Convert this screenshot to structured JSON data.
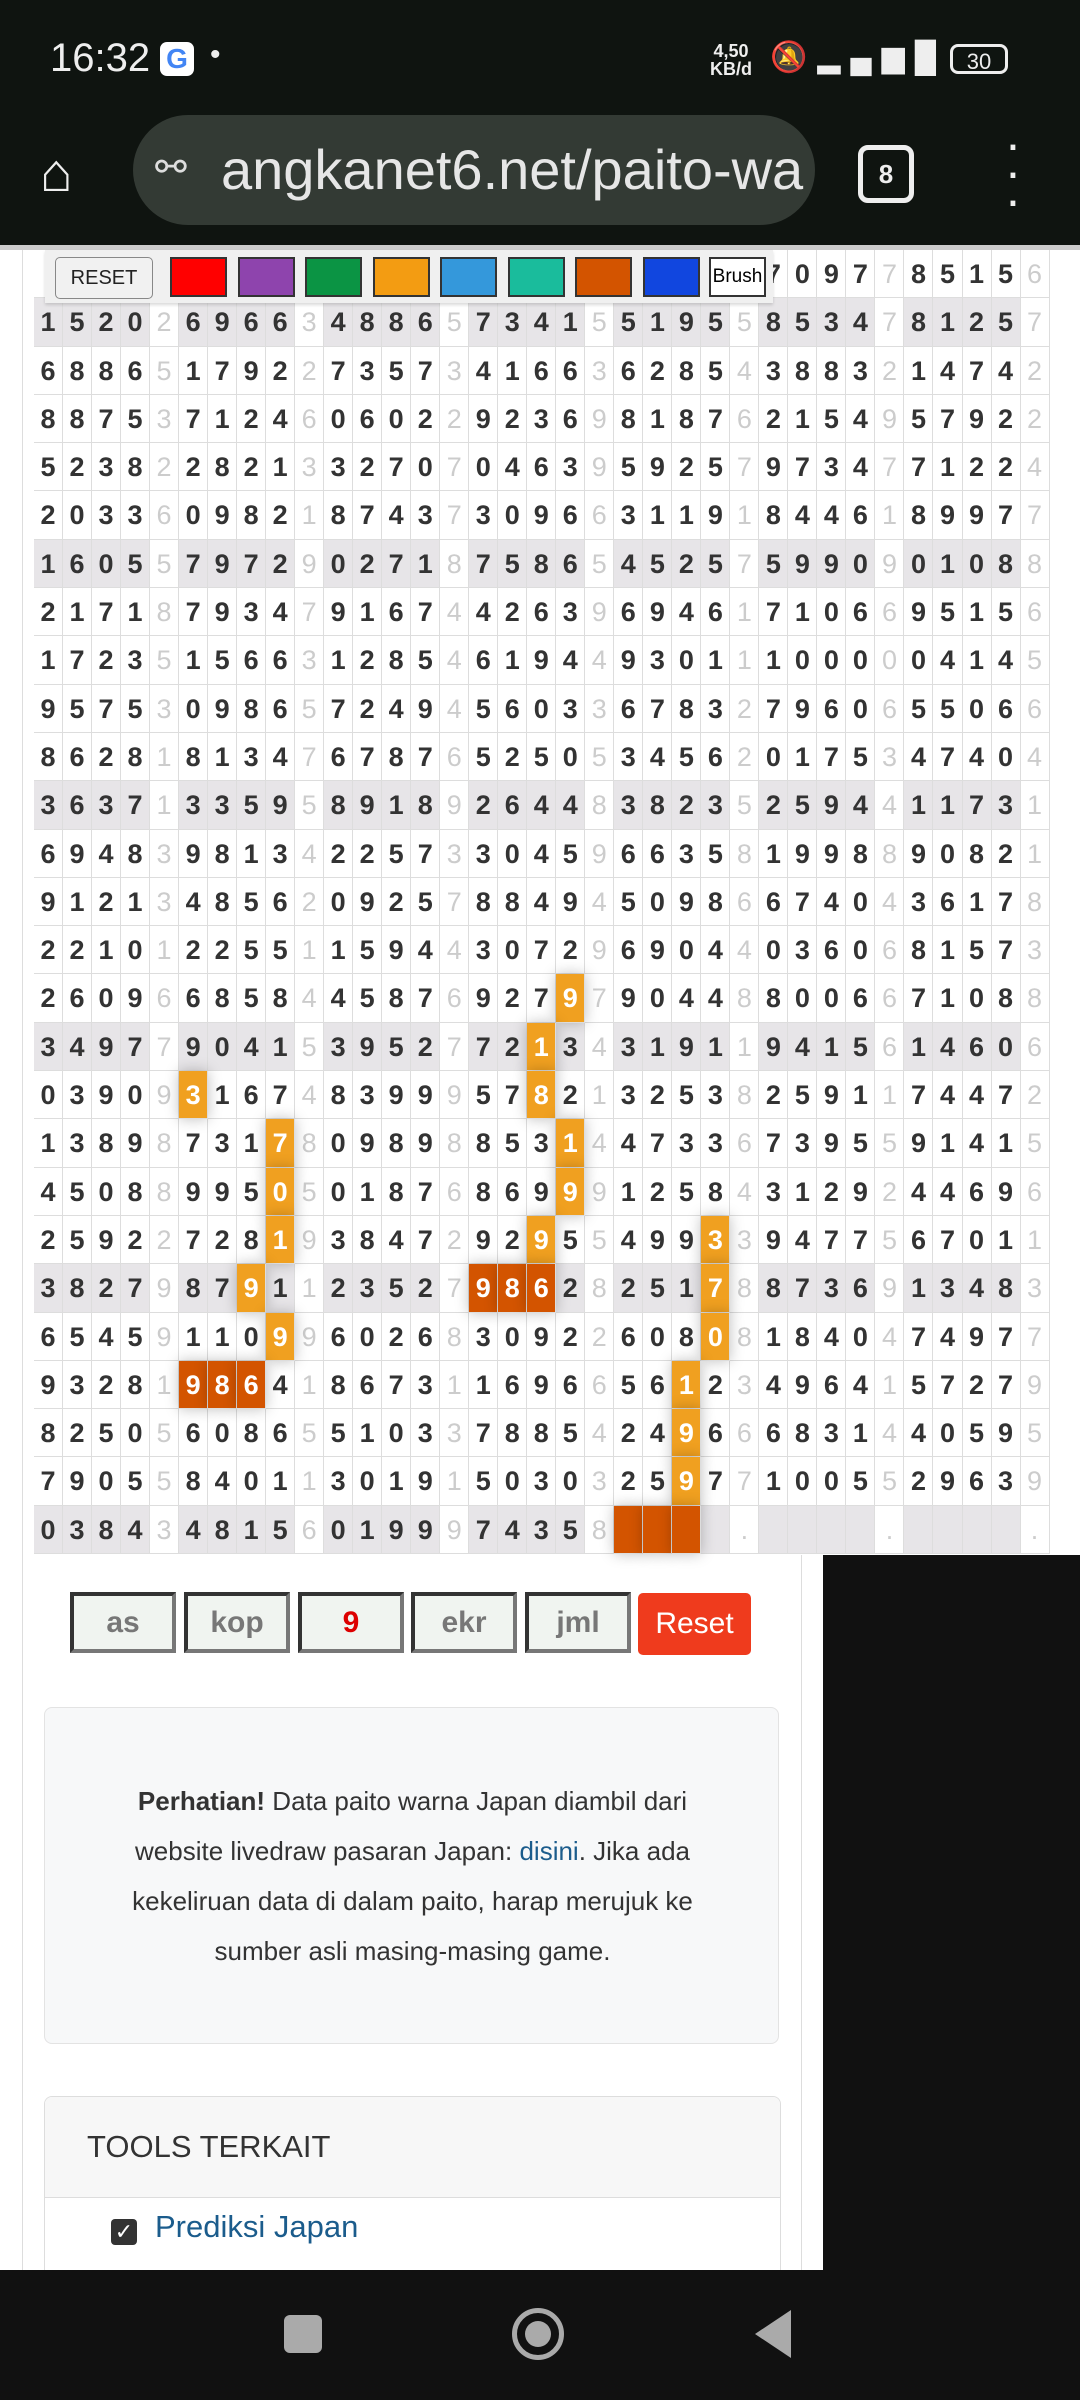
{
  "status_bar": {
    "time": "16:32",
    "app_icon": "google-g-icon",
    "net_speed": "4,50",
    "net_unit": "KB/d",
    "battery": "30"
  },
  "browser": {
    "url": "angkanet6.net/paito-wa",
    "tab_count": "8"
  },
  "toolbar": {
    "reset_label": "RESET",
    "swatches": [
      "#ff0000",
      "#8e44ad",
      "#0b9444",
      "#f39c12",
      "#3498db",
      "#1abc9c",
      "#d35400",
      "#1146df"
    ],
    "brush_label": "Brush"
  },
  "grid": {
    "rows": [
      "                         7097785156",
      "15202696634886573415519558534781257",
      "68865179227357341663628543883214742",
      "88753712460602292369818762154957922",
      "52382282133270704639592579734771224",
      "20336098218743730966311918446189977",
      "16055797290271875865452575990901088",
      "21718793479167442639694617106695156",
      "17235156631285461944930111000004145",
      "95753098657249456033678327960655066",
      "86281813476787652505345620175347404",
      "36371335958918926448382352594411731",
      "69483981342257330459663581998890821",
      "91213485620925788494509866740436178",
      "22101225511594430729690440360681573",
      "26096685844587692797904488006671088",
      "34977904153952772134319119415614606",
      "03909316748399957821325382591174472",
      "13898731780989885314473367395591415",
      "45088995050187686999125843129244696",
      "25922728193847292955499339477567011",
      "38279879112352798628251788736913483",
      "65459110996026830922608081840474977",
      "93281986418673116966561234964157279",
      "82505608655103378854249666831440595",
      "79055840113019150303259771005529639",
      "03843481560199974358    .    .    ."
    ],
    "highlights": [
      [
        15,
        18,
        "o"
      ],
      [
        16,
        17,
        "o"
      ],
      [
        17,
        5,
        "o"
      ],
      [
        17,
        17,
        "o"
      ],
      [
        18,
        8,
        "o"
      ],
      [
        18,
        18,
        "o"
      ],
      [
        19,
        8,
        "o"
      ],
      [
        19,
        18,
        "o"
      ],
      [
        20,
        8,
        "o"
      ],
      [
        20,
        17,
        "o"
      ],
      [
        20,
        23,
        "o"
      ],
      [
        21,
        7,
        "o"
      ],
      [
        21,
        15,
        "d"
      ],
      [
        21,
        16,
        "d"
      ],
      [
        21,
        17,
        "d"
      ],
      [
        21,
        23,
        "o"
      ],
      [
        22,
        8,
        "o"
      ],
      [
        22,
        23,
        "o"
      ],
      [
        23,
        5,
        "d"
      ],
      [
        23,
        6,
        "d"
      ],
      [
        23,
        7,
        "d"
      ],
      [
        23,
        22,
        "o"
      ],
      [
        24,
        22,
        "o"
      ],
      [
        25,
        22,
        "o"
      ],
      [
        26,
        20,
        "d"
      ],
      [
        26,
        21,
        "d"
      ],
      [
        26,
        22,
        "d"
      ]
    ],
    "highlight_colors": {
      "o": "#f0a020",
      "d": "#d35400"
    }
  },
  "filters": {
    "as_placeholder": "as",
    "kop_placeholder": "kop",
    "kepala_value": "9",
    "ekr_placeholder": "ekr",
    "jml_placeholder": "jml",
    "reset_label": "Reset"
  },
  "notice": {
    "bold": "Perhatian!",
    "text1": " Data paito warna Japan diambil dari website livedraw pasaran Japan: ",
    "link": "disini",
    "text2": ". Jika ada kekeliruan data di dalam paito, harap merujuk ke sumber asli masing-masing game."
  },
  "tools_card": {
    "title": "TOOLS TERKAIT",
    "items": [
      {
        "label": "Prediksi Japan",
        "icon": "checkbox-icon"
      }
    ]
  }
}
